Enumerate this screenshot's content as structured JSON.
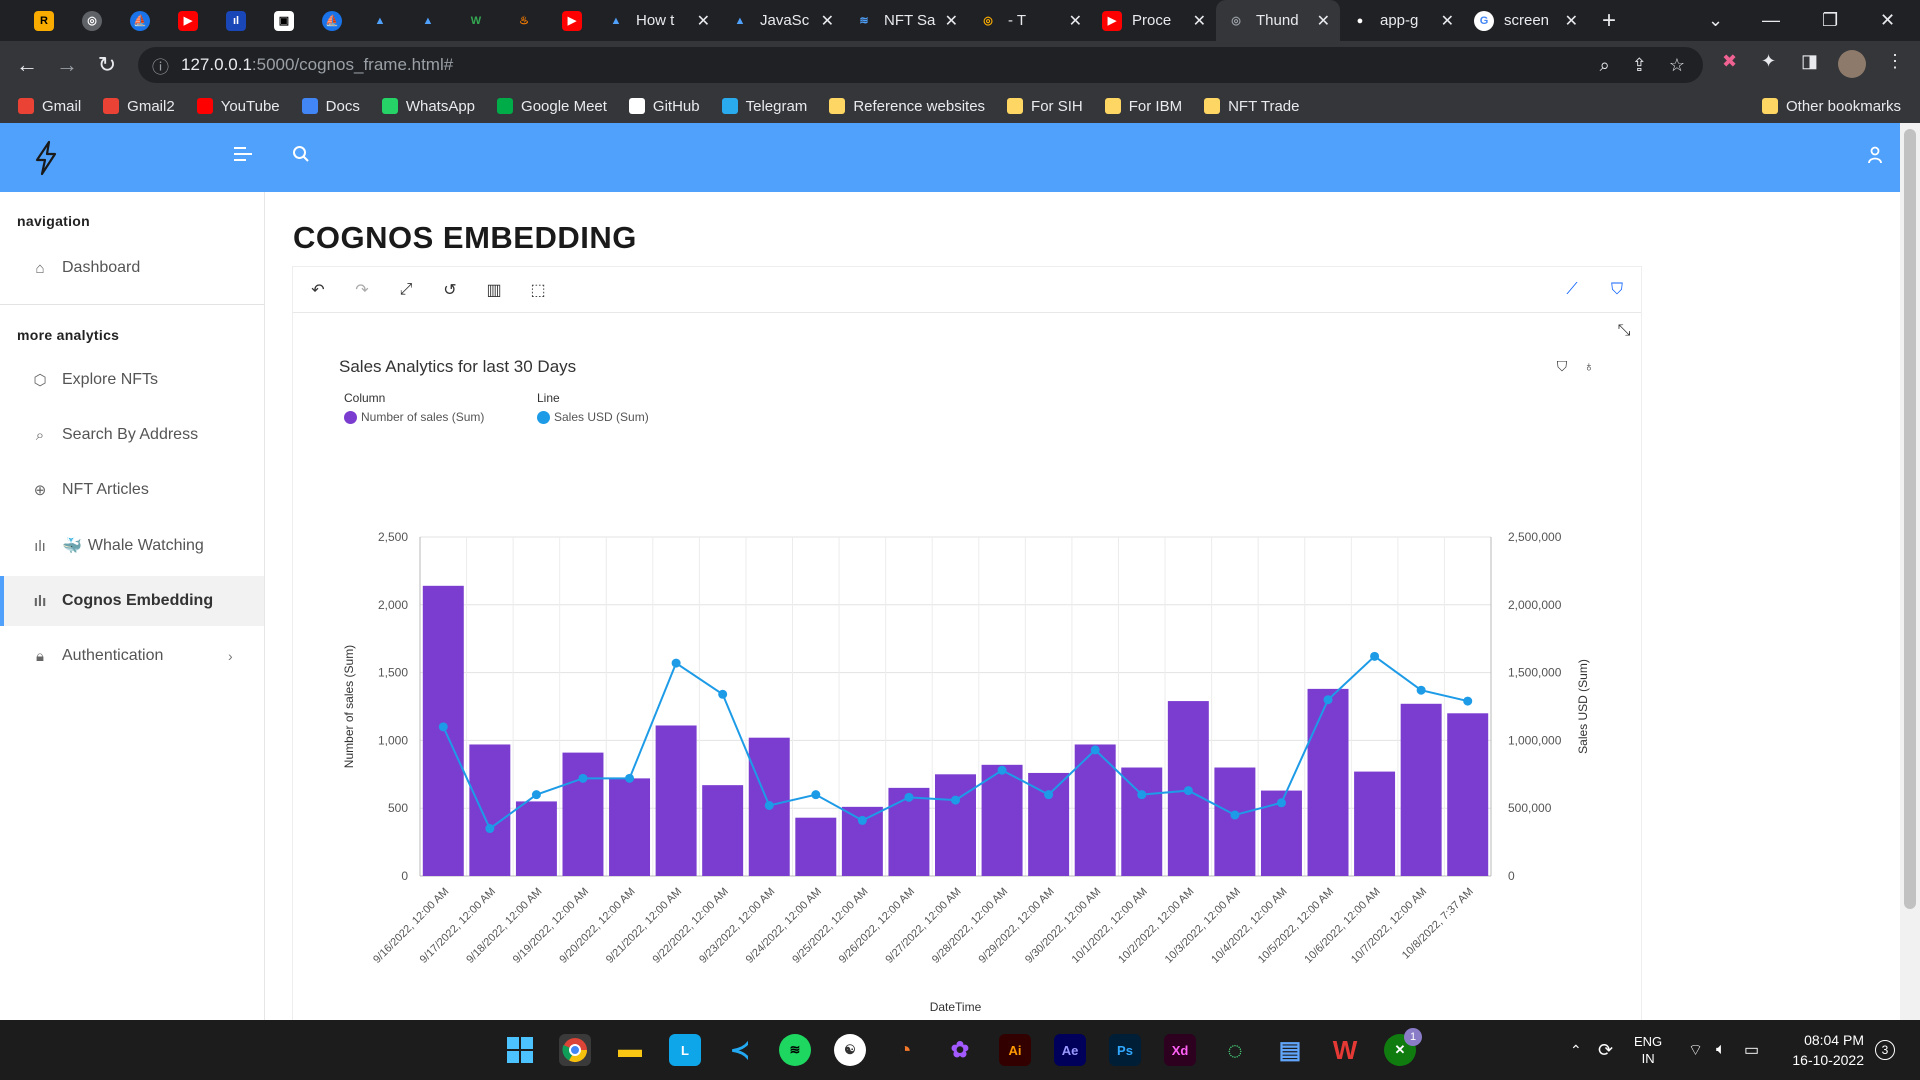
{
  "browser": {
    "tabs": [
      {
        "title": "How t",
        "favicon": "#4fa1fc",
        "active": false
      },
      {
        "title": "JavaSc",
        "favicon": "#4fa1fc",
        "active": false
      },
      {
        "title": "NFT Sa",
        "favicon": "#4fa1fc",
        "active": false
      },
      {
        "title": "- T",
        "favicon": "#f9ab00",
        "active": false
      },
      {
        "title": "Proce",
        "favicon": "#ff0000",
        "active": false
      },
      {
        "title": "Thund",
        "favicon": "#9aa0a6",
        "active": true
      },
      {
        "title": "app-g",
        "favicon": "#ffffff",
        "active": false
      },
      {
        "title": "screen",
        "favicon": "#ffffff",
        "active": false
      }
    ],
    "url_host": "127.0.0.1",
    "url_path": ":5000/cognos_frame.html#",
    "bookmarks": [
      {
        "label": "Gmail",
        "color": "#ea4335",
        "folder": false
      },
      {
        "label": "Gmail2",
        "color": "#ea4335",
        "folder": false
      },
      {
        "label": "YouTube",
        "color": "#ff0000",
        "folder": false
      },
      {
        "label": "Docs",
        "color": "#4285f4",
        "folder": false
      },
      {
        "label": "WhatsApp",
        "color": "#25d366",
        "folder": false
      },
      {
        "label": "Google Meet",
        "color": "#00ac47",
        "folder": false
      },
      {
        "label": "GitHub",
        "color": "#ffffff",
        "folder": false
      },
      {
        "label": "Telegram",
        "color": "#2aabee",
        "folder": false
      },
      {
        "label": "Reference websites",
        "color": "#fdd663",
        "folder": true
      },
      {
        "label": "For SIH",
        "color": "#fdd663",
        "folder": true
      },
      {
        "label": "For IBM",
        "color": "#fdd663",
        "folder": true
      },
      {
        "label": "NFT Trade",
        "color": "#fdd663",
        "folder": true
      }
    ],
    "other_bookmarks": "Other bookmarks"
  },
  "sidebar": {
    "heading_navigation": "navigation",
    "heading_more": "more analytics",
    "dashboard": "Dashboard",
    "explore": "Explore NFTs",
    "search": "Search By Address",
    "articles": "NFT Articles",
    "whale": "Whale Watching",
    "cognos": "Cognos Embedding",
    "auth": "Authentication"
  },
  "page": {
    "title": "COGNOS EMBEDDING"
  },
  "chart_data": {
    "type": "bar",
    "title": "Sales Analytics for last 30 Days",
    "legend_column_title": "Column",
    "legend_line_title": "Line",
    "xlabel": "DateTime",
    "ylabel": "Number of sales (Sum)",
    "y2label": "Sales USD (Sum)",
    "ylim": [
      0,
      2500
    ],
    "y2lim": [
      0,
      2500000
    ],
    "yticks": [
      "0",
      "500",
      "1,000",
      "1,500",
      "2,000",
      "2,500"
    ],
    "y2ticks": [
      "0",
      "500,000",
      "1,000,000",
      "1,500,000",
      "2,000,000",
      "2,500,000"
    ],
    "grid": true,
    "categories": [
      "9/16/2022, 12:00 AM",
      "9/17/2022, 12:00 AM",
      "9/18/2022, 12:00 AM",
      "9/19/2022, 12:00 AM",
      "9/20/2022, 12:00 AM",
      "9/21/2022, 12:00 AM",
      "9/22/2022, 12:00 AM",
      "9/23/2022, 12:00 AM",
      "9/24/2022, 12:00 AM",
      "9/25/2022, 12:00 AM",
      "9/26/2022, 12:00 AM",
      "9/27/2022, 12:00 AM",
      "9/28/2022, 12:00 AM",
      "9/29/2022, 12:00 AM",
      "9/30/2022, 12:00 AM",
      "10/1/2022, 12:00 AM",
      "10/2/2022, 12:00 AM",
      "10/3/2022, 12:00 AM",
      "10/4/2022, 12:00 AM",
      "10/5/2022, 12:00 AM",
      "10/6/2022, 12:00 AM",
      "10/7/2022, 12:00 AM",
      "10/8/2022, 7:37 AM"
    ],
    "series": [
      {
        "name": "Number of sales (Sum)",
        "type": "column",
        "color": "#7b3dd0",
        "values": [
          2140,
          970,
          550,
          910,
          720,
          1110,
          670,
          1020,
          430,
          510,
          650,
          750,
          820,
          760,
          970,
          800,
          1290,
          800,
          630,
          1380,
          770,
          1270,
          1200
        ]
      },
      {
        "name": "Sales USD (Sum)",
        "type": "line",
        "color": "#1d9be7",
        "values": [
          1100000,
          350000,
          600000,
          720000,
          720000,
          1570000,
          1340000,
          520000,
          600000,
          410000,
          580000,
          560000,
          780000,
          600000,
          930000,
          600000,
          630000,
          450000,
          540000,
          1300000,
          1620000,
          1370000,
          1290000
        ]
      }
    ]
  },
  "taskbar": {
    "lang": "ENG",
    "region": "IN",
    "time": "08:04 PM",
    "date": "16-10-2022",
    "notifications": "3",
    "xbox_badge": "1"
  },
  "colors": {
    "accent": "#4fa1fc",
    "bar": "#7b3dd0",
    "line": "#1d9be7"
  }
}
